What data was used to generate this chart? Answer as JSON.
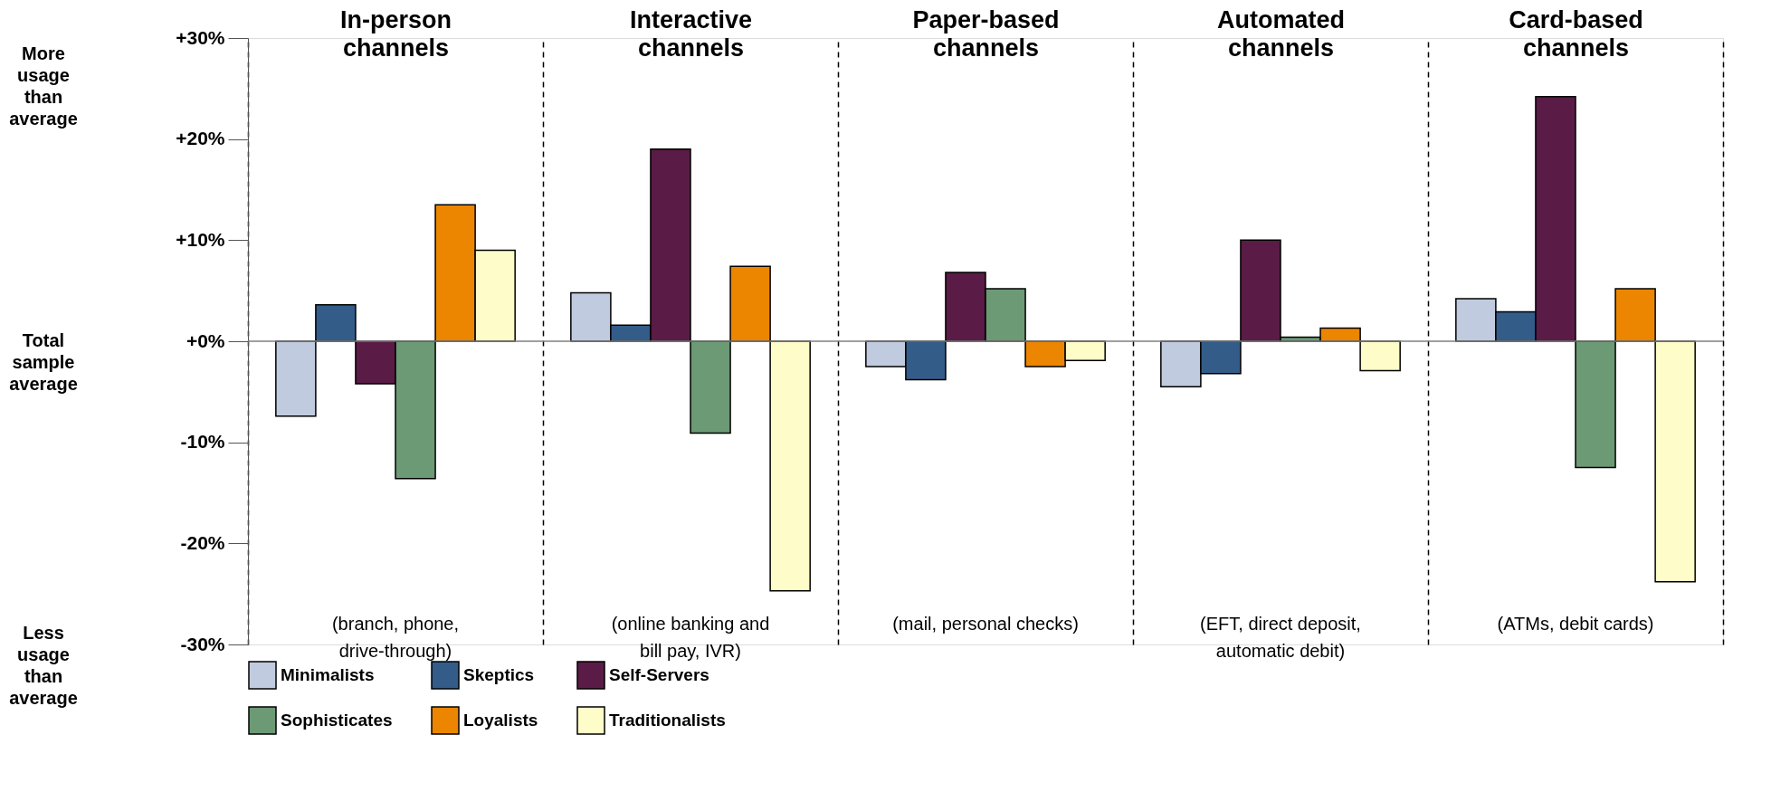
{
  "chart_data": {
    "type": "bar",
    "categories": [
      "In-person channels",
      "Interactive channels",
      "Paper-based channels",
      "Automated channels",
      "Card-based channels"
    ],
    "series": [
      {
        "name": "Minimalists",
        "color": "#c1cbdf",
        "values": [
          -7.4,
          4.8,
          -2.5,
          -4.5,
          4.2
        ]
      },
      {
        "name": "Skeptics",
        "color": "#335c89",
        "values": [
          3.6,
          1.6,
          -3.8,
          -3.2,
          2.9
        ]
      },
      {
        "name": "Self-Servers",
        "color": "#5a1c46",
        "values": [
          -4.2,
          19.0,
          6.8,
          10.0,
          24.2
        ]
      },
      {
        "name": "Sophisticates",
        "color": "#6b9a75",
        "values": [
          -13.6,
          -9.1,
          5.2,
          0.4,
          -12.5
        ]
      },
      {
        "name": "Loyalists",
        "color": "#ec8500",
        "values": [
          13.5,
          7.4,
          -2.5,
          1.3,
          5.2
        ]
      },
      {
        "name": "Traditionalists",
        "color": "#fefcc8",
        "values": [
          9.0,
          -24.7,
          -1.9,
          -2.9,
          -23.8
        ]
      }
    ],
    "ylim": [
      -30,
      30
    ],
    "yticks": [
      {
        "value": -30,
        "label": "-30%"
      },
      {
        "value": -20,
        "label": "-20%"
      },
      {
        "value": -10,
        "label": "-10%"
      },
      {
        "value": 0,
        "label": "+0%"
      },
      {
        "value": 10,
        "label": "+10%"
      },
      {
        "value": 20,
        "label": "+20%"
      },
      {
        "value": 30,
        "label": "+30%"
      }
    ],
    "ref_lines": [
      {
        "axis": "y",
        "value": 0,
        "color": "#808080"
      }
    ],
    "annotations": [
      "More usage than average",
      "Total sample average",
      "Less usage than average",
      "(branch, phone, drive-through)",
      "(online banking and bill pay, IVR)",
      "(mail, personal checks)",
      "(EFT, direct deposit, automatic debit)",
      "(ATMs, debit cards)"
    ],
    "legend": "bottom",
    "grid": "x"
  }
}
